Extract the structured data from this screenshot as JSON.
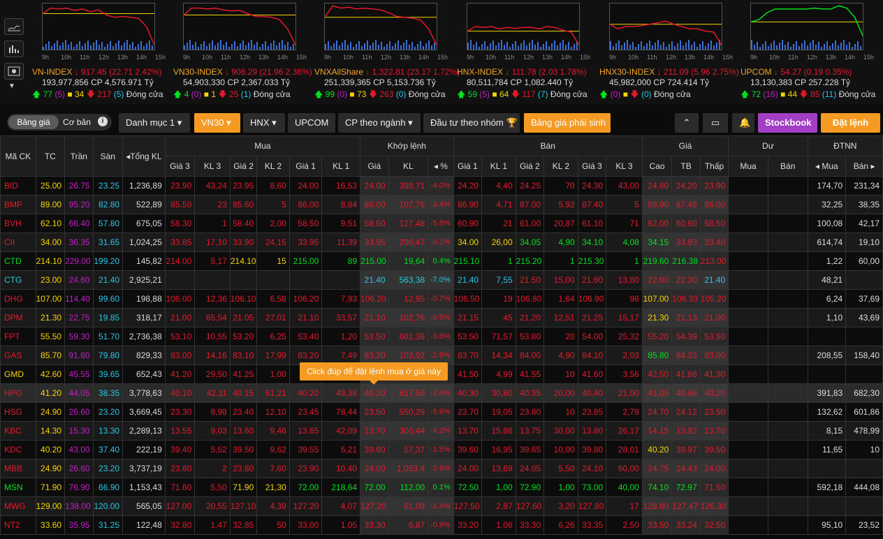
{
  "hours": [
    "9h",
    "10h",
    "11h",
    "12h",
    "13h",
    "14h",
    "15h"
  ],
  "indices": [
    {
      "name": "VN-INDEX",
      "arrow": "down",
      "change": "917.45 (22.71 2.42%)",
      "vol": "193,977,856",
      "cp_label": "CP",
      "value": "4,576.971",
      "unit": "Tỷ",
      "up": "77",
      "up_ce": "(5)",
      "ref": "34",
      "down": "217",
      "down_fl": "(5)",
      "status": "Đóng cửa"
    },
    {
      "name": "VN30-INDEX",
      "arrow": "down",
      "change": "908.29 (21.96 2.36%)",
      "vol": "54,903,330",
      "cp_label": "CP",
      "value": "2,367.033",
      "unit": "Tỷ",
      "up": "4",
      "up_ce": "(0)",
      "ref": "1",
      "down": "25",
      "down_fl": "(1)",
      "status": "Đóng cửa"
    },
    {
      "name": "VNXAllShare",
      "arrow": "down",
      "change": "1,322.81 (23.17 1.72%)",
      "vol": "251,339,365",
      "cp_label": "CP",
      "value": "5,153.736",
      "unit": "Tỷ",
      "up": "99",
      "up_ce": "(0)",
      "ref": "73",
      "down": "263",
      "down_fl": "(0)",
      "status": "Đóng cửa"
    },
    {
      "name": "HNX-INDEX",
      "arrow": "down",
      "change": "111.78 (2.03 1.78%)",
      "vol": "80,511,784",
      "cp_label": "CP",
      "value": "1,082.440",
      "unit": "Tỷ",
      "up": "59",
      "up_ce": "(5)",
      "ref": "64",
      "down": "117",
      "down_fl": "(7)",
      "status": "Đóng cửa"
    },
    {
      "name": "HNX30-INDEX",
      "arrow": "down",
      "change": "211.09 (5.96 2.75%)",
      "vol": "45,982,000",
      "cp_label": "CP",
      "value": "724.414",
      "unit": "Tỷ",
      "up": "",
      "up_ce": "(0)",
      "ref": "",
      "down": "",
      "down_fl": "(0)",
      "status": "Đóng cửa"
    },
    {
      "name": "UPCOM",
      "arrow": "down",
      "change": "54.27 (0.19 0.35%)",
      "vol": "13,130,383",
      "cp_label": "CP",
      "value": "257.228",
      "unit": "Tỷ",
      "up": "72",
      "up_ce": "(16)",
      "ref": "44",
      "down": "85",
      "down_fl": "(11)",
      "status": "Đóng cửa"
    }
  ],
  "tabs": {
    "bang_gia": "Bảng giá",
    "co_ban": "Cơ bản",
    "danh_muc": "Danh mục 1",
    "vn30": "VN30",
    "hnx": "HNX",
    "upcom": "UPCOM",
    "cp_nganh": "CP theo ngành",
    "dau_tu": "Đầu tư theo nhóm",
    "phai_sinh": "Bảng giá phái sinh",
    "stockbook": "Stockbook",
    "dat_lenh": "Đặt lệnh"
  },
  "headers": {
    "ma_ck": "Mã CK",
    "tc": "TC",
    "tran": "Trần",
    "san": "Sàn",
    "tong_kl": "Tổng KL",
    "mua": "Mua",
    "khop": "Khớp lệnh",
    "ban": "Bán",
    "gia": "Giá",
    "du": "Dư",
    "dtnn": "ĐTNN",
    "gia3": "Giá 3",
    "kl3": "KL 3",
    "gia2": "Giá 2",
    "kl2": "KL 2",
    "gia1": "Giá 1",
    "kl1": "KL 1",
    "kgia": "Giá",
    "kkl": "KL",
    "kpct": "%",
    "cao": "Cao",
    "tb": "TB",
    "thap": "Thấp",
    "dmua": "Mua",
    "dban": "Bán",
    "nmua": "Mua",
    "nban": "Bán"
  },
  "tooltip": "Click đúp để đặt lệnh mua ở giá này",
  "colors": {
    "up": "#00e11e",
    "down": "#e6192b",
    "ref": "#f5d500",
    "ceil": "#c51ec8",
    "floor": "#29c6e6",
    "accent": "#f59a23",
    "stockbook": "#a13ec4"
  },
  "rows": [
    {
      "sym": "BID",
      "tc": "25.00",
      "tran": "26.75",
      "san": "23.25",
      "tkl": "1,236,89",
      "b3": "23.90",
      "bk3": "43,24",
      "b2": "23.95",
      "bk2": "8,60",
      "b1": "24.00",
      "bk1": "16,53",
      "mg": "24.00",
      "mk": "398,71",
      "mp": "-4.0%",
      "s1": "24.20",
      "sk1": "4,40",
      "s2": "24.25",
      "sk2": "70",
      "s3": "24.30",
      "sk3": "43,00",
      "hi": "24.80",
      "avg": "24.20",
      "lo": "23.90",
      "dm": "",
      "db": "",
      "nm": "174,70",
      "nb": "231,34"
    },
    {
      "sym": "BMP",
      "tc": "89.00",
      "tran": "95.20",
      "san": "82.80",
      "tkl": "522,89",
      "b3": "85.50",
      "bk3": "23",
      "b2": "85.60",
      "bk2": "5",
      "b1": "86.00",
      "bk1": "8,84",
      "mg": "86.00",
      "mk": "107,76",
      "mp": "-3.4%",
      "s1": "86.90",
      "sk1": "4,71",
      "s2": "87.00",
      "sk2": "5,92",
      "s3": "87.40",
      "sk3": "5",
      "hi": "88.90",
      "avg": "87.48",
      "lo": "86.00",
      "dm": "",
      "db": "",
      "nm": "32,25",
      "nb": "38,35"
    },
    {
      "sym": "BVH",
      "tc": "62.10",
      "tran": "66.40",
      "san": "57.80",
      "tkl": "675,05",
      "b3": "58.30",
      "bk3": "1",
      "b2": "58.40",
      "bk2": "2,00",
      "b1": "58.50",
      "bk1": "9,51",
      "mg": "58.50",
      "mk": "127,48",
      "mp": "-5.8%",
      "s1": "60.90",
      "sk1": "21",
      "s2": "61.00",
      "sk2": "20,87",
      "s3": "61.10",
      "sk3": "71",
      "hi": "62.00",
      "avg": "60.60",
      "lo": "58.50",
      "dm": "",
      "db": "",
      "nm": "100,08",
      "nb": "42,17"
    },
    {
      "sym": "CII",
      "tc": "34.00",
      "tran": "36.35",
      "san": "31.65",
      "tkl": "1,024,25",
      "b3": "33.85",
      "bk3": "17,10",
      "b2": "33.90",
      "bk2": "24,15",
      "b1": "33.95",
      "bk1": "11,39",
      "mg": "33.95",
      "mk": "200,47",
      "mp": "-0.1%",
      "s1": "34.00",
      "sk1": "26,00",
      "s2": "34.05",
      "sk2": "4,90",
      "s3": "34.10",
      "sk3": "4,08",
      "hi": "34.15",
      "avg": "33.93",
      "lo": "33.40",
      "dm": "",
      "db": "",
      "nm": "614,74",
      "nb": "19,10"
    },
    {
      "sym": "CTD",
      "tc": "214.10",
      "tran": "229.00",
      "san": "199.20",
      "tkl": "145,82",
      "b3": "214.00",
      "bk3": "5,17",
      "b2": "214.10",
      "bk2": "15",
      "b1": "215.00",
      "bk1": "89",
      "mg": "215.00",
      "mk": "19,64",
      "mp": "0.4%",
      "s1": "215.10",
      "sk1": "1",
      "s2": "215.20",
      "sk2": "1",
      "s3": "215.30",
      "sk3": "1",
      "hi": "219.60",
      "avg": "216.38",
      "lo": "213.00",
      "dm": "",
      "db": "",
      "nm": "1,22",
      "nb": "60,00"
    },
    {
      "sym": "CTG",
      "tc": "23.00",
      "tran": "24.60",
      "san": "21.40",
      "tkl": "2,925,21",
      "b3": "",
      "bk3": "",
      "b2": "",
      "bk2": "",
      "b1": "",
      "bk1": "",
      "mg": "21.40",
      "mk": "563,38",
      "mp": "-7.0%",
      "s1": "21.40",
      "sk1": "7,55",
      "s2": "21.50",
      "sk2": "15,00",
      "s3": "21.60",
      "sk3": "13,80",
      "hi": "22.90",
      "avg": "22.30",
      "lo": "21.40",
      "dm": "",
      "db": "",
      "nm": "48,21",
      "nb": ""
    },
    {
      "sym": "DHG",
      "tc": "107.00",
      "tran": "114.40",
      "san": "99.60",
      "tkl": "198,88",
      "b3": "106.00",
      "bk3": "12,36",
      "b2": "106.10",
      "bk2": "6,58",
      "b1": "106.20",
      "bk1": "7,93",
      "mg": "106.20",
      "mk": "12,95",
      "mp": "-0.7%",
      "s1": "106.50",
      "sk1": "19",
      "s2": "106.80",
      "sk2": "1,64",
      "s3": "106.90",
      "sk3": "98",
      "hi": "107.00",
      "avg": "106.33",
      "lo": "105.20",
      "dm": "",
      "db": "",
      "nm": "6,24",
      "nb": "37,69"
    },
    {
      "sym": "DPM",
      "tc": "21.30",
      "tran": "22.75",
      "san": "19.85",
      "tkl": "318,17",
      "b3": "21.00",
      "bk3": "65,54",
      "b2": "21.05",
      "bk2": "27,01",
      "b1": "21.10",
      "bk1": "33,57",
      "mg": "21.10",
      "mk": "102,76",
      "mp": "-0.9%",
      "s1": "21.15",
      "sk1": "45",
      "s2": "21.20",
      "sk2": "12,51",
      "s3": "21.25",
      "sk3": "15,17",
      "hi": "21.30",
      "avg": "21.13",
      "lo": "21.00",
      "dm": "",
      "db": "",
      "nm": "1,10",
      "nb": "43,69"
    },
    {
      "sym": "FPT",
      "tc": "55.50",
      "tran": "59.30",
      "san": "51.70",
      "tkl": "2,736,38",
      "b3": "53.10",
      "bk3": "10,55",
      "b2": "53.20",
      "bk2": "6,25",
      "b1": "53.40",
      "bk1": "1,20",
      "mg": "53.50",
      "mk": "601,38",
      "mp": "-3.6%",
      "s1": "53.50",
      "sk1": "71,57",
      "s2": "53.80",
      "sk2": "20",
      "s3": "54.00",
      "sk3": "25,32",
      "hi": "55.20",
      "avg": "54.39",
      "lo": "53.50",
      "dm": "",
      "db": "",
      "nm": "",
      "nb": ""
    },
    {
      "sym": "GAS",
      "tc": "85.70",
      "tran": "91.60",
      "san": "79.80",
      "tkl": "829,33",
      "b3": "83.00",
      "bk3": "14,16",
      "b2": "83.10",
      "bk2": "17,99",
      "b1": "83.20",
      "bk1": "7,49",
      "mg": "83.20",
      "mk": "103,92",
      "mp": "-2.9%",
      "s1": "83.70",
      "sk1": "14,34",
      "s2": "84.00",
      "sk2": "4,90",
      "s3": "84.10",
      "sk3": "2,03",
      "hi": "85.80",
      "avg": "84.33",
      "lo": "83.00",
      "dm": "",
      "db": "",
      "nm": "208,55",
      "nb": "158,40"
    },
    {
      "sym": "GMD",
      "tc": "42.60",
      "tran": "45.55",
      "san": "39.65",
      "tkl": "652,43",
      "b3": "41.20",
      "bk3": "29,50",
      "b2": "41.25",
      "bk2": "1,00",
      "b1": "",
      "bk1": "",
      "mg": "",
      "mk": "",
      "mp": "",
      "s1": "41.50",
      "sk1": "4,99",
      "s2": "41.55",
      "sk2": "10",
      "s3": "41.60",
      "sk3": "3,56",
      "hi": "42.50",
      "avg": "41.86",
      "lo": "41.30",
      "dm": "",
      "db": "",
      "nm": "",
      "nb": ""
    },
    {
      "sym": "HPG",
      "tc": "41.20",
      "tran": "44.05",
      "san": "38.35",
      "tkl": "3,778,63",
      "b3": "40.10",
      "bk3": "42,11",
      "b2": "40.15",
      "bk2": "61,21",
      "b1": "40.20",
      "bk1": "49,38",
      "mg": "40.20",
      "mk": "617,50",
      "mp": "-2.4%",
      "s1": "40.30",
      "sk1": "30,80",
      "s2": "40.35",
      "sk2": "20,00",
      "s3": "40.40",
      "sk3": "21,00",
      "hi": "41.05",
      "avg": "40.66",
      "lo": "40.20",
      "dm": "",
      "db": "",
      "nm": "391,83",
      "nb": "682,30"
    },
    {
      "sym": "HSG",
      "tc": "24.90",
      "tran": "26.60",
      "san": "23.20",
      "tkl": "3,669,45",
      "b3": "23.30",
      "bk3": "8,98",
      "b2": "23.40",
      "bk2": "12,10",
      "b1": "23.45",
      "bk1": "78,44",
      "mg": "23.50",
      "mk": "550,29",
      "mp": "-5.6%",
      "s1": "23.70",
      "sk1": "19,05",
      "s2": "23.80",
      "sk2": "10",
      "s3": "23.85",
      "sk3": "2,78",
      "hi": "24.70",
      "avg": "24.12",
      "lo": "23.50",
      "dm": "",
      "db": "",
      "nm": "132,62",
      "nb": "601,86"
    },
    {
      "sym": "KBC",
      "tc": "14.30",
      "tran": "15.30",
      "san": "13.30",
      "tkl": "2,289,13",
      "b3": "13.55",
      "bk3": "9,03",
      "b2": "13.60",
      "bk2": "9,46",
      "b1": "13.65",
      "bk1": "42,09",
      "mg": "13.70",
      "mk": "300,44",
      "mp": "-4.2%",
      "s1": "13.70",
      "sk1": "15,88",
      "s2": "13.75",
      "sk2": "30,00",
      "s3": "13.80",
      "sk3": "26,17",
      "hi": "14.15",
      "avg": "13.92",
      "lo": "13.70",
      "dm": "",
      "db": "",
      "nm": "8,15",
      "nb": "478,99"
    },
    {
      "sym": "KDC",
      "tc": "40.20",
      "tran": "43.00",
      "san": "37.40",
      "tkl": "222,19",
      "b3": "39.40",
      "bk3": "5,52",
      "b2": "39.50",
      "bk2": "9,62",
      "b1": "39.55",
      "bk1": "5,21",
      "mg": "39.60",
      "mk": "57,37",
      "mp": "-1.5%",
      "s1": "39.60",
      "sk1": "16,95",
      "s2": "39.65",
      "sk2": "10,00",
      "s3": "39.80",
      "sk3": "28,01",
      "hi": "40.20",
      "avg": "39.97",
      "lo": "39.50",
      "dm": "",
      "db": "",
      "nm": "11,65",
      "nb": "10"
    },
    {
      "sym": "MBB",
      "tc": "24.90",
      "tran": "26.60",
      "san": "23.20",
      "tkl": "3,737,19",
      "b3": "23.60",
      "bk3": "2",
      "b2": "23.80",
      "bk2": "7,60",
      "b1": "23.90",
      "bk1": "10,40",
      "mg": "24.00",
      "mk": "1,053,4",
      "mp": "-3.6%",
      "s1": "24.00",
      "sk1": "13,69",
      "s2": "24.05",
      "sk2": "5,50",
      "s3": "24.10",
      "sk3": "60,00",
      "hi": "24.75",
      "avg": "24.43",
      "lo": "24.00",
      "dm": "",
      "db": "",
      "nm": "",
      "nb": ""
    },
    {
      "sym": "MSN",
      "tc": "71.90",
      "tran": "76.90",
      "san": "66.90",
      "tkl": "1,153,43",
      "b3": "71.60",
      "bk3": "5,50",
      "b2": "71.90",
      "bk2": "21,30",
      "b1": "72.00",
      "bk1": "218,64",
      "mg": "72.00",
      "mk": "112,00",
      "mp": "0.1%",
      "s1": "72.50",
      "sk1": "1,00",
      "s2": "72.90",
      "sk2": "1,00",
      "s3": "73.00",
      "sk3": "40,00",
      "hi": "74.10",
      "avg": "72.97",
      "lo": "71.50",
      "dm": "",
      "db": "",
      "nm": "592,18",
      "nb": "444,08"
    },
    {
      "sym": "MWG",
      "tc": "129.00",
      "tran": "138.00",
      "san": "120.00",
      "tkl": "565,05",
      "b3": "127.00",
      "bk3": "20,55",
      "b2": "127.10",
      "bk2": "4,39",
      "b1": "127.20",
      "bk1": "4,07",
      "mg": "127.20",
      "mk": "61,08",
      "mp": "-1.4%",
      "s1": "127.50",
      "sk1": "2,87",
      "s2": "127.60",
      "sk2": "3,20",
      "s3": "127.80",
      "sk3": "17",
      "hi": "128.80",
      "avg": "127.47",
      "lo": "126.30",
      "dm": "",
      "db": "",
      "nm": "",
      "nb": ""
    },
    {
      "sym": "NT2",
      "tc": "33.60",
      "tran": "35.95",
      "san": "31.25",
      "tkl": "122,48",
      "b3": "32.80",
      "bk3": "1,47",
      "b2": "32.85",
      "bk2": "50",
      "b1": "33.00",
      "bk1": "1,05",
      "mg": "33.30",
      "mk": "6,87",
      "mp": "-0.9%",
      "s1": "33.20",
      "sk1": "1,06",
      "s2": "33.30",
      "sk2": "6,26",
      "s3": "33.35",
      "sk3": "2,50",
      "hi": "33.50",
      "avg": "33.24",
      "lo": "32.50",
      "dm": "",
      "db": "",
      "nm": "95,10",
      "nb": "23,52"
    }
  ]
}
